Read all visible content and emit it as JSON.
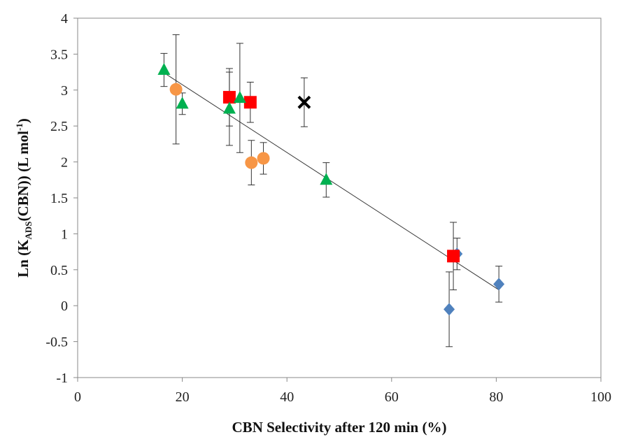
{
  "chart_data": {
    "type": "scatter",
    "xlabel": "CBN Selectivity after 120 min (%)",
    "ylabel": {
      "prefix": "Ln (K",
      "subscript": "ADS",
      "middle": "(CBN)) (L mol",
      "superscript": "-1",
      "suffix": ")"
    },
    "xlim": [
      0,
      100
    ],
    "ylim": [
      -1,
      4
    ],
    "x_ticks": [
      "0",
      "20",
      "40",
      "60",
      "80",
      "100"
    ],
    "y_ticks": [
      "-1",
      "-0.5",
      "0",
      "0.5",
      "1",
      "1.5",
      "2",
      "2.5",
      "3",
      "3.5",
      "4"
    ],
    "grid": false,
    "legend": "none",
    "trendline": {
      "x": [
        16.5,
        80.5
      ],
      "y": [
        3.24,
        0.22
      ]
    },
    "series": [
      {
        "marker": "diamond",
        "color": "#4f81bd",
        "points": [
          {
            "x": 72.5,
            "y": 0.72,
            "err": 0.22
          },
          {
            "x": 71.0,
            "y": -0.05,
            "err": 0.52
          },
          {
            "x": 80.5,
            "y": 0.3,
            "err": 0.25
          }
        ]
      },
      {
        "marker": "square",
        "color": "#ff0000",
        "points": [
          {
            "x": 29.0,
            "y": 2.9,
            "err": 0.4
          },
          {
            "x": 33.0,
            "y": 2.83,
            "err": 0.28
          },
          {
            "x": 71.8,
            "y": 0.69,
            "err": 0.47
          }
        ]
      },
      {
        "marker": "triangle",
        "color": "#00b050",
        "points": [
          {
            "x": 16.5,
            "y": 3.28,
            "err": 0.23
          },
          {
            "x": 20.0,
            "y": 2.81,
            "err": 0.15
          },
          {
            "x": 29.0,
            "y": 2.74,
            "err": 0.51
          },
          {
            "x": 31.0,
            "y": 2.89,
            "err": 0.76
          },
          {
            "x": 47.5,
            "y": 1.75,
            "err": 0.24
          }
        ]
      },
      {
        "marker": "circle",
        "color": "#f79646",
        "points": [
          {
            "x": 18.8,
            "y": 3.01,
            "err": 0.76
          },
          {
            "x": 33.2,
            "y": 1.99,
            "err": 0.31
          },
          {
            "x": 35.5,
            "y": 2.05,
            "err": 0.22
          }
        ]
      },
      {
        "marker": "cross",
        "color": "#000000",
        "points": [
          {
            "x": 43.3,
            "y": 2.83,
            "err": 0.34
          }
        ]
      }
    ]
  }
}
